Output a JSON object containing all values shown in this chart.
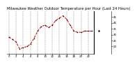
{
  "title": "Milwaukee Weather Outdoor Temperature per Hour (Last 24 Hours)",
  "hours": [
    0,
    1,
    2,
    3,
    4,
    5,
    6,
    7,
    8,
    9,
    10,
    11,
    12,
    13,
    14,
    15,
    16,
    17,
    18,
    19,
    20,
    21,
    22,
    23
  ],
  "temps": [
    28,
    26,
    24,
    18,
    19,
    20,
    22,
    27,
    33,
    37,
    38,
    36,
    38,
    42,
    44,
    46,
    43,
    38,
    33,
    32,
    32,
    33,
    33,
    33
  ],
  "line_color": "#cc0000",
  "marker_color": "#000000",
  "bg_color": "#ffffff",
  "grid_color": "#888888",
  "title_color": "#000000",
  "ylim": [
    14,
    50
  ],
  "ytick_values": [
    20,
    25,
    30,
    35,
    40,
    45
  ],
  "ytick_labels": [
    "20",
    "25",
    "30",
    "35",
    "40",
    "45"
  ],
  "title_fontsize": 3.8,
  "tick_fontsize": 2.8,
  "line_width": 0.7,
  "marker_size": 1.6
}
